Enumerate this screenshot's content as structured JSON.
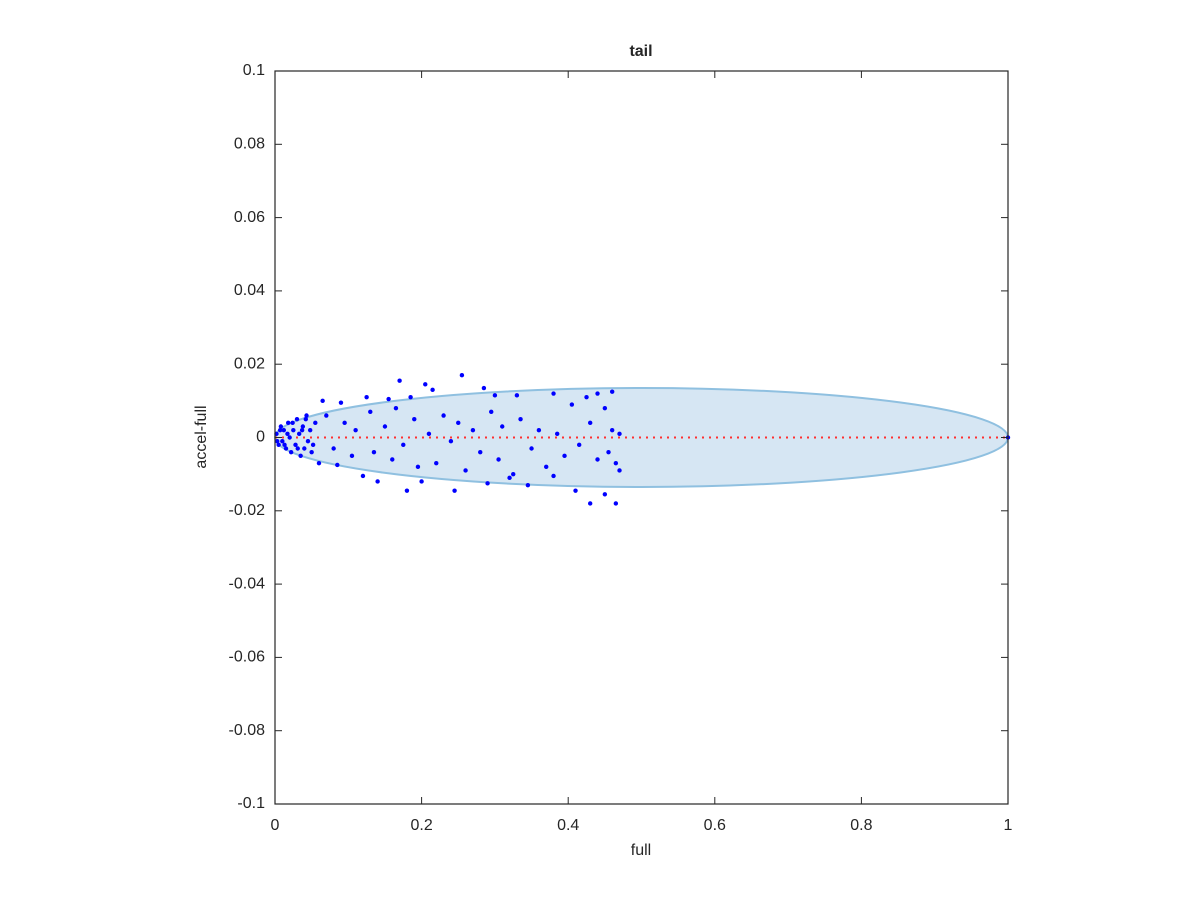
{
  "chart_data": {
    "type": "scatter",
    "title": "tail",
    "x_label": "full",
    "y_label": "accel-full",
    "xlim": [
      0,
      1
    ],
    "ylim": [
      -0.1,
      0.1
    ],
    "xticks": [
      0,
      0.2,
      0.4,
      0.6,
      0.8,
      1
    ],
    "yticks": [
      -0.1,
      -0.08,
      -0.06,
      -0.04,
      -0.02,
      0,
      0.02,
      0.04,
      0.06,
      0.08,
      0.1
    ],
    "ellipse": {
      "center": [
        0.5,
        0
      ],
      "radii": [
        0.5,
        0.0135
      ],
      "color": "#d6e6f3",
      "edge_color": "#8fc0e0"
    },
    "ref_line": {
      "x": [
        0,
        1
      ],
      "y": [
        0,
        0
      ],
      "color": "#ff3030"
    },
    "series": [
      {
        "color": "#0000ff",
        "x": [
          0.002,
          0.005,
          0.008,
          0.01,
          0.012,
          0.015,
          0.018,
          0.02,
          0.022,
          0.025,
          0.028,
          0.03,
          0.033,
          0.035,
          0.038,
          0.04,
          0.043,
          0.045,
          0.048,
          0.05,
          0.003,
          0.007,
          0.013,
          0.017,
          0.024,
          0.031,
          0.037,
          0.042,
          0.052,
          0.055,
          0.07,
          0.08,
          0.095,
          0.105,
          0.11,
          0.13,
          0.135,
          0.15,
          0.16,
          0.165,
          0.175,
          0.19,
          0.195,
          0.21,
          0.22,
          0.23,
          0.24,
          0.25,
          0.26,
          0.27,
          0.28,
          0.295,
          0.305,
          0.31,
          0.325,
          0.335,
          0.35,
          0.36,
          0.37,
          0.385,
          0.395,
          0.405,
          0.415,
          0.43,
          0.44,
          0.45,
          0.455,
          0.46,
          0.465,
          0.47,
          0.17,
          0.205,
          0.215,
          0.255,
          0.285,
          0.125,
          0.09,
          0.065,
          0.155,
          0.185,
          0.44,
          0.46,
          0.425,
          0.38,
          0.33,
          0.3,
          0.43,
          0.465,
          0.45,
          0.41,
          0.245,
          0.18,
          0.345,
          0.14,
          0.12,
          0.085,
          0.06,
          0.2,
          0.29,
          0.32,
          0.38,
          0.47,
          1
        ],
        "values": [
          0.001,
          -0.002,
          0.003,
          -0.001,
          0.002,
          -0.003,
          0.004,
          0,
          -0.004,
          0.002,
          -0.002,
          0.005,
          0.001,
          -0.005,
          0.003,
          -0.003,
          0.006,
          -0.001,
          0.002,
          -0.004,
          -0.001,
          0.002,
          -0.002,
          0.001,
          0.004,
          -0.003,
          0.002,
          0.005,
          -0.002,
          0.004,
          0.006,
          -0.003,
          0.004,
          -0.005,
          0.002,
          0.007,
          -0.004,
          0.003,
          -0.006,
          0.008,
          -0.002,
          0.005,
          -0.008,
          0.001,
          -0.007,
          0.006,
          -0.001,
          0.004,
          -0.009,
          0.002,
          -0.004,
          0.007,
          -0.006,
          0.003,
          -0.01,
          0.005,
          -0.003,
          0.002,
          -0.008,
          0.001,
          -0.005,
          0.009,
          -0.002,
          0.004,
          -0.006,
          0.008,
          -0.004,
          0.002,
          -0.007,
          0.001,
          0.0155,
          0.0145,
          0.013,
          0.017,
          0.0135,
          0.011,
          0.0095,
          0.01,
          0.0105,
          0.011,
          0.012,
          0.0125,
          0.011,
          0.012,
          0.0115,
          0.0115,
          -0.018,
          -0.018,
          -0.0155,
          -0.0145,
          -0.0145,
          -0.0145,
          -0.013,
          -0.012,
          -0.0105,
          -0.0075,
          -0.007,
          -0.012,
          -0.0125,
          -0.011,
          -0.0105,
          -0.009,
          0
        ]
      }
    ]
  }
}
